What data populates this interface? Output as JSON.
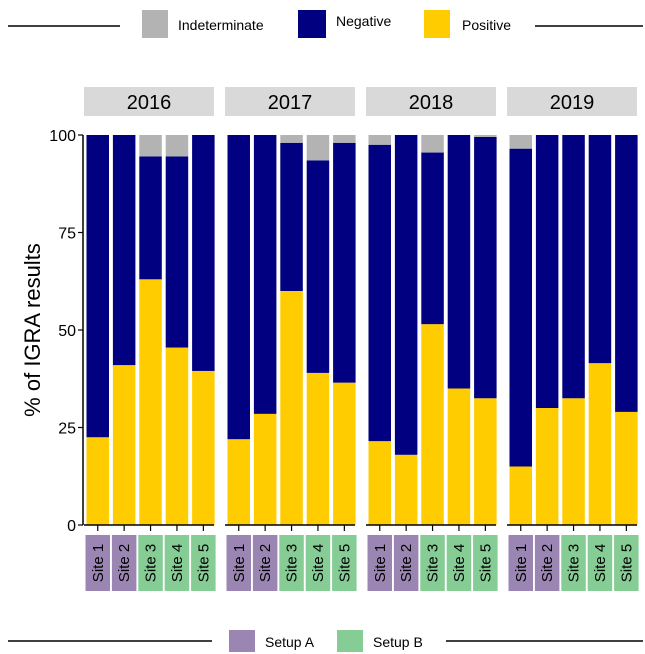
{
  "chart_data": {
    "type": "bar",
    "stacked": true,
    "ylabel": "% of IGRA results",
    "ylim": [
      0,
      100
    ],
    "yticks": [
      0,
      25,
      50,
      75,
      100
    ],
    "legend_top": {
      "position": "top",
      "items": [
        {
          "label": "Indeterminate",
          "color": "#b3b3b3"
        },
        {
          "label": "Negative",
          "color": "#000080"
        },
        {
          "label": "Positive",
          "color": "#ffcc00"
        }
      ]
    },
    "legend_bottom": {
      "position": "bottom",
      "items": [
        {
          "label": "Setup A",
          "color": "#9b86b3"
        },
        {
          "label": "Setup B",
          "color": "#86cc95"
        }
      ]
    },
    "categories": [
      "Site 1",
      "Site 2",
      "Site 3",
      "Site 4",
      "Site 5"
    ],
    "category_setup": [
      "Setup A",
      "Setup A",
      "Setup B",
      "Setup B",
      "Setup B"
    ],
    "panels": [
      {
        "title": "2016",
        "series": [
          {
            "name": "Positive",
            "values": [
              22.5,
              41,
              63,
              45.5,
              39.5
            ]
          },
          {
            "name": "Negative",
            "values": [
              77.5,
              59,
              31.5,
              49,
              60.5
            ]
          },
          {
            "name": "Indeterminate",
            "values": [
              0,
              0,
              5.5,
              5.5,
              0
            ]
          }
        ]
      },
      {
        "title": "2017",
        "series": [
          {
            "name": "Positive",
            "values": [
              22,
              28.5,
              60,
              39,
              36.5
            ]
          },
          {
            "name": "Negative",
            "values": [
              78,
              71.5,
              38,
              54.5,
              61.5
            ]
          },
          {
            "name": "Indeterminate",
            "values": [
              0,
              0,
              2,
              6.5,
              2
            ]
          }
        ]
      },
      {
        "title": "2018",
        "series": [
          {
            "name": "Positive",
            "values": [
              21.5,
              18,
              51.5,
              35,
              32.5
            ]
          },
          {
            "name": "Negative",
            "values": [
              76,
              82,
              44,
              65,
              67
            ]
          },
          {
            "name": "Indeterminate",
            "values": [
              2.5,
              0,
              4.5,
              0,
              0.5
            ]
          }
        ]
      },
      {
        "title": "2019",
        "series": [
          {
            "name": "Positive",
            "values": [
              15,
              30,
              32.5,
              41.5,
              29
            ]
          },
          {
            "name": "Negative",
            "values": [
              81.5,
              70,
              67.5,
              58.5,
              71
            ]
          },
          {
            "name": "Indeterminate",
            "values": [
              3.5,
              0,
              0,
              0,
              0
            ]
          }
        ]
      }
    ]
  }
}
